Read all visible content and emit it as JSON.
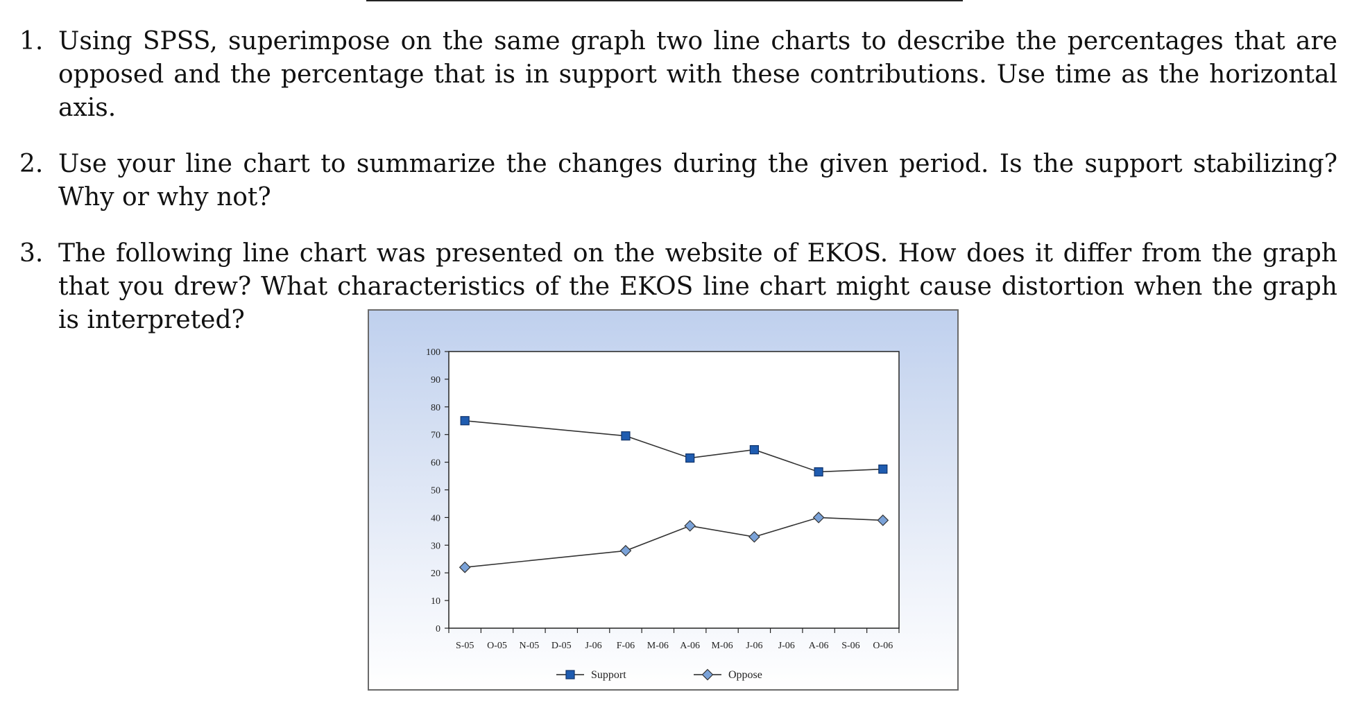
{
  "questions": [
    {
      "number": "1.",
      "text": "Using SPSS, superimpose on the same graph two line charts to describe the percentages that are opposed and the percentage that is in support with these contributions. Use time as the horizontal axis."
    },
    {
      "number": "2.",
      "text": "Use your line chart to summarize the changes during the given period. Is the support stabilizing? Why or why not?"
    },
    {
      "number": "3.",
      "text": "The following line chart was presented on the website of EKOS. How does it differ from the graph that you drew? What characteristics of the EKOS line chart might cause distortion when the graph is interpreted?"
    }
  ],
  "chart_data": {
    "type": "line",
    "title": "",
    "xlabel": "",
    "ylabel": "",
    "ylim": [
      0,
      100
    ],
    "yticks": [
      0,
      10,
      20,
      30,
      40,
      50,
      60,
      70,
      80,
      90,
      100
    ],
    "categories": [
      "S-05",
      "O-05",
      "N-05",
      "D-05",
      "J-06",
      "F-06",
      "M-06",
      "A-06",
      "M-06",
      "J-06",
      "J-06",
      "A-06",
      "S-06",
      "O-06"
    ],
    "series": [
      {
        "name": "Support",
        "marker": "square",
        "color": "#1f5cb0",
        "values": [
          75,
          null,
          null,
          null,
          null,
          69.5,
          null,
          61.5,
          null,
          64.5,
          null,
          56.5,
          null,
          57.5
        ]
      },
      {
        "name": "Oppose",
        "marker": "diamond",
        "color": "#7aa2d8",
        "values": [
          22,
          null,
          null,
          null,
          null,
          28,
          null,
          37,
          null,
          33,
          null,
          40,
          null,
          39
        ]
      }
    ],
    "legend": "bottom",
    "grid": false
  }
}
